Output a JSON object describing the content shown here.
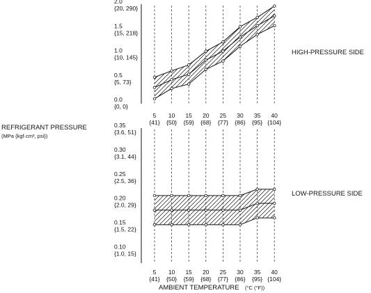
{
  "figure": {
    "ylabel_line1": "REFRIGERANT PRESSURE",
    "ylabel_line2": "(MPa {kgf·cm², psi})",
    "xlabel": "AMBIENT TEMPERATURE",
    "xlabel_unit": "(°C (°F))"
  },
  "chart_data": [
    {
      "type": "area",
      "title": "HIGH-PRESSURE SIDE",
      "ylabel": "",
      "ylim": [
        0,
        2.0
      ],
      "yticks": [
        {
          "value": 2.0,
          "label": "2.0",
          "sub": "{20, 290}"
        },
        {
          "value": 1.5,
          "label": "1.5",
          "sub": "{15, 218}"
        },
        {
          "value": 1.0,
          "label": "1.0",
          "sub": "{10, 145}"
        },
        {
          "value": 0.5,
          "label": "0.5",
          "sub": "{5, 73}"
        },
        {
          "value": 0.0,
          "label": "0.0",
          "sub": "{0, 0}"
        }
      ],
      "x": [
        5,
        10,
        15,
        20,
        25,
        30,
        35,
        40
      ],
      "xticks": [
        {
          "label": "5",
          "sub": "{41}"
        },
        {
          "label": "10",
          "sub": "{50}"
        },
        {
          "label": "15",
          "sub": "{59}"
        },
        {
          "label": "20",
          "sub": "{68}"
        },
        {
          "label": "25",
          "sub": "{77}"
        },
        {
          "label": "30",
          "sub": "{86}"
        },
        {
          "label": "35",
          "sub": "{95}"
        },
        {
          "label": "40",
          "sub": "{104}"
        }
      ],
      "series": [
        {
          "values": [
            0.54,
            0.67,
            0.79,
            1.07,
            1.26,
            1.57,
            1.76,
            1.99
          ]
        },
        {
          "values": [
            0.33,
            0.49,
            0.6,
            0.89,
            1.07,
            1.36,
            1.59,
            1.79
          ]
        },
        {
          "values": [
            0.1,
            0.31,
            0.4,
            0.7,
            0.87,
            1.17,
            1.41,
            1.59
          ]
        }
      ]
    },
    {
      "type": "area",
      "title": "LOW-PRESSURE SIDE",
      "ylabel": "",
      "ylim": [
        0.075,
        0.35
      ],
      "yticks": [
        {
          "value": 0.35,
          "label": "0.35",
          "sub": "{3.6, 51}"
        },
        {
          "value": 0.3,
          "label": "0.30",
          "sub": "{3.1, 44}"
        },
        {
          "value": 0.25,
          "label": "0.25",
          "sub": "{2.5, 36}"
        },
        {
          "value": 0.2,
          "label": "0.20",
          "sub": "{2.0, 29}"
        },
        {
          "value": 0.15,
          "label": "0.15",
          "sub": "{1.5, 22}"
        },
        {
          "value": 0.1,
          "label": "0.10",
          "sub": "{1.0, 15}"
        }
      ],
      "x": [
        5,
        10,
        15,
        20,
        25,
        30,
        35,
        40
      ],
      "xticks": [
        {
          "label": "5",
          "sub": "{41}"
        },
        {
          "label": "10",
          "sub": "{50}"
        },
        {
          "label": "15",
          "sub": "{59}"
        },
        {
          "label": "20",
          "sub": "{68}"
        },
        {
          "label": "25",
          "sub": "{77}"
        },
        {
          "label": "30",
          "sub": "{86}"
        },
        {
          "label": "35",
          "sub": "{95}"
        },
        {
          "label": "40",
          "sub": "{104}"
        }
      ],
      "series": [
        {
          "values": [
            0.214,
            0.214,
            0.214,
            0.214,
            0.214,
            0.214,
            0.227,
            0.227
          ]
        },
        {
          "values": [
            0.184,
            0.184,
            0.184,
            0.184,
            0.184,
            0.184,
            0.198,
            0.198
          ]
        },
        {
          "values": [
            0.154,
            0.154,
            0.154,
            0.154,
            0.154,
            0.154,
            0.168,
            0.168
          ]
        }
      ]
    }
  ]
}
